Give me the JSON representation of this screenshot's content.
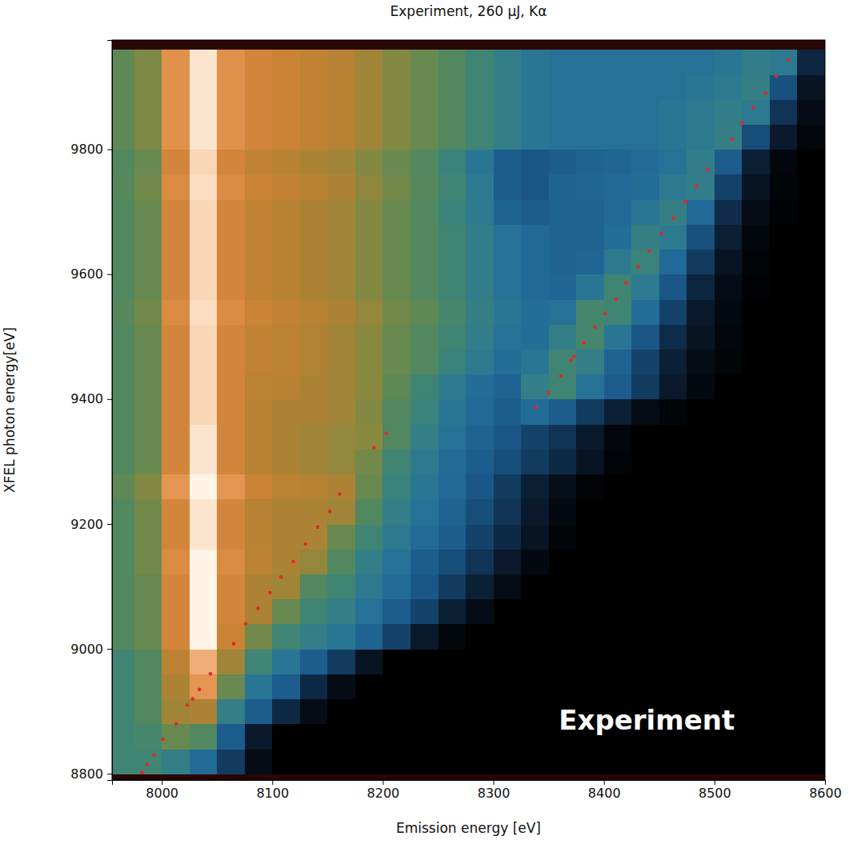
{
  "chart_data": {
    "type": "heatmap",
    "title": "Experiment, 260 μJ, Kα",
    "x_label": "Emission energy [eV]",
    "y_label": "XFEL photon energy[eV]",
    "xlim": [
      7955,
      8600
    ],
    "ylim": [
      8790,
      9975
    ],
    "xticks": [
      8000,
      8100,
      8200,
      8300,
      8400,
      8500,
      8600
    ],
    "yticks": [
      8800,
      9000,
      9200,
      9400,
      9600,
      9800
    ],
    "zlim": [
      0,
      1
    ],
    "x_bins": [
      7955,
      7975,
      8000,
      8025,
      8050,
      8075,
      8100,
      8125,
      8150,
      8175,
      8200,
      8225,
      8250,
      8275,
      8300,
      8325,
      8350,
      8375,
      8400,
      8425,
      8450,
      8475,
      8500,
      8525,
      8550,
      8575,
      8600
    ],
    "y_bins": [
      8800,
      8840,
      8880,
      8920,
      8960,
      9000,
      9040,
      9080,
      9120,
      9160,
      9200,
      9240,
      9280,
      9320,
      9360,
      9400,
      9440,
      9480,
      9520,
      9560,
      9600,
      9640,
      9680,
      9720,
      9760,
      9800,
      9840,
      9880,
      9920,
      9960
    ],
    "cells": [
      [
        0.5,
        0.5,
        0.45,
        0.35,
        0.2,
        0.05,
        0,
        0,
        0,
        0,
        0,
        0,
        0,
        0,
        0,
        0,
        0,
        0,
        0,
        0,
        0,
        0,
        0,
        0,
        0,
        0
      ],
      [
        0.5,
        0.52,
        0.6,
        0.55,
        0.3,
        0.1,
        0,
        0,
        0,
        0,
        0,
        0,
        0,
        0,
        0,
        0,
        0,
        0,
        0,
        0,
        0,
        0,
        0,
        0,
        0,
        0
      ],
      [
        0.5,
        0.55,
        0.7,
        0.72,
        0.45,
        0.3,
        0.15,
        0.05,
        0,
        0,
        0,
        0,
        0,
        0,
        0,
        0,
        0,
        0,
        0,
        0,
        0,
        0,
        0,
        0,
        0,
        0
      ],
      [
        0.5,
        0.55,
        0.72,
        0.85,
        0.6,
        0.4,
        0.3,
        0.15,
        0.05,
        0,
        0,
        0,
        0,
        0,
        0,
        0,
        0,
        0,
        0,
        0,
        0,
        0,
        0,
        0,
        0,
        0
      ],
      [
        0.5,
        0.55,
        0.75,
        0.9,
        0.7,
        0.5,
        0.4,
        0.3,
        0.2,
        0.08,
        0,
        0,
        0,
        0,
        0,
        0,
        0,
        0,
        0,
        0,
        0,
        0,
        0,
        0,
        0,
        0
      ],
      [
        0.55,
        0.6,
        0.8,
        1,
        0.78,
        0.62,
        0.5,
        0.45,
        0.4,
        0.32,
        0.22,
        0.1,
        0.03,
        0,
        0,
        0,
        0,
        0,
        0,
        0,
        0,
        0,
        0,
        0,
        0,
        0
      ],
      [
        0.55,
        0.6,
        0.8,
        1,
        0.8,
        0.72,
        0.6,
        0.5,
        0.45,
        0.38,
        0.3,
        0.22,
        0.12,
        0.05,
        0,
        0,
        0,
        0,
        0,
        0,
        0,
        0,
        0,
        0,
        0,
        0
      ],
      [
        0.55,
        0.6,
        0.8,
        1,
        0.8,
        0.72,
        0.7,
        0.55,
        0.5,
        0.42,
        0.35,
        0.28,
        0.2,
        0.12,
        0.05,
        0,
        0,
        0,
        0,
        0,
        0,
        0,
        0,
        0,
        0,
        0
      ],
      [
        0.55,
        0.62,
        0.82,
        1,
        0.82,
        0.75,
        0.72,
        0.68,
        0.55,
        0.45,
        0.38,
        0.3,
        0.25,
        0.18,
        0.1,
        0.04,
        0,
        0,
        0,
        0,
        0,
        0,
        0,
        0,
        0,
        0
      ],
      [
        0.55,
        0.62,
        0.8,
        0.98,
        0.8,
        0.74,
        0.72,
        0.72,
        0.6,
        0.5,
        0.42,
        0.35,
        0.3,
        0.22,
        0.15,
        0.08,
        0.02,
        0,
        0,
        0,
        0,
        0,
        0,
        0,
        0,
        0
      ],
      [
        0.55,
        0.62,
        0.8,
        0.98,
        0.8,
        0.74,
        0.72,
        0.72,
        0.7,
        0.55,
        0.45,
        0.38,
        0.32,
        0.25,
        0.18,
        0.1,
        0.04,
        0,
        0,
        0,
        0,
        0,
        0,
        0,
        0,
        0
      ],
      [
        0.58,
        0.65,
        0.85,
        1,
        0.85,
        0.78,
        0.75,
        0.74,
        0.72,
        0.6,
        0.48,
        0.4,
        0.34,
        0.28,
        0.2,
        0.12,
        0.06,
        0.02,
        0,
        0,
        0,
        0,
        0,
        0,
        0,
        0
      ],
      [
        0.55,
        0.6,
        0.8,
        0.98,
        0.8,
        0.74,
        0.72,
        0.7,
        0.68,
        0.62,
        0.5,
        0.42,
        0.35,
        0.3,
        0.25,
        0.2,
        0.15,
        0.08,
        0.02,
        0,
        0,
        0,
        0,
        0,
        0,
        0
      ],
      [
        0.55,
        0.6,
        0.8,
        0.98,
        0.8,
        0.74,
        0.72,
        0.7,
        0.68,
        0.66,
        0.55,
        0.45,
        0.38,
        0.32,
        0.28,
        0.22,
        0.18,
        0.1,
        0.03,
        0,
        0,
        0,
        0,
        0,
        0,
        0
      ],
      [
        0.55,
        0.6,
        0.8,
        0.96,
        0.8,
        0.74,
        0.72,
        0.72,
        0.7,
        0.65,
        0.55,
        0.48,
        0.4,
        0.34,
        0.3,
        0.35,
        0.3,
        0.2,
        0.12,
        0.05,
        0.02,
        0,
        0,
        0,
        0,
        0
      ],
      [
        0.55,
        0.6,
        0.8,
        0.96,
        0.8,
        0.75,
        0.74,
        0.72,
        0.7,
        0.66,
        0.58,
        0.5,
        0.42,
        0.36,
        0.32,
        0.45,
        0.5,
        0.38,
        0.3,
        0.2,
        0.1,
        0.04,
        0,
        0,
        0,
        0
      ],
      [
        0.55,
        0.6,
        0.8,
        0.96,
        0.8,
        0.76,
        0.75,
        0.73,
        0.7,
        0.66,
        0.6,
        0.55,
        0.48,
        0.42,
        0.36,
        0.4,
        0.5,
        0.45,
        0.32,
        0.22,
        0.12,
        0.05,
        0.02,
        0,
        0,
        0
      ],
      [
        0.55,
        0.6,
        0.8,
        0.96,
        0.8,
        0.76,
        0.75,
        0.73,
        0.7,
        0.66,
        0.6,
        0.55,
        0.5,
        0.44,
        0.38,
        0.36,
        0.45,
        0.52,
        0.4,
        0.28,
        0.16,
        0.08,
        0.03,
        0,
        0,
        0
      ],
      [
        0.56,
        0.62,
        0.82,
        0.97,
        0.82,
        0.78,
        0.76,
        0.74,
        0.72,
        0.68,
        0.62,
        0.58,
        0.52,
        0.46,
        0.4,
        0.36,
        0.38,
        0.52,
        0.5,
        0.36,
        0.22,
        0.1,
        0.04,
        0,
        0,
        0
      ],
      [
        0.55,
        0.6,
        0.8,
        0.96,
        0.8,
        0.76,
        0.74,
        0.72,
        0.7,
        0.65,
        0.6,
        0.55,
        0.5,
        0.44,
        0.38,
        0.34,
        0.33,
        0.4,
        0.5,
        0.42,
        0.28,
        0.14,
        0.05,
        0.01,
        0,
        0
      ],
      [
        0.55,
        0.6,
        0.8,
        0.96,
        0.8,
        0.76,
        0.74,
        0.72,
        0.7,
        0.65,
        0.6,
        0.55,
        0.5,
        0.44,
        0.38,
        0.34,
        0.32,
        0.33,
        0.42,
        0.48,
        0.34,
        0.2,
        0.08,
        0.02,
        0,
        0
      ],
      [
        0.55,
        0.6,
        0.8,
        0.96,
        0.8,
        0.76,
        0.74,
        0.72,
        0.7,
        0.65,
        0.6,
        0.55,
        0.5,
        0.44,
        0.38,
        0.34,
        0.32,
        0.32,
        0.36,
        0.46,
        0.42,
        0.26,
        0.12,
        0.03,
        0,
        0
      ],
      [
        0.55,
        0.6,
        0.8,
        0.96,
        0.8,
        0.76,
        0.74,
        0.72,
        0.7,
        0.65,
        0.6,
        0.55,
        0.48,
        0.42,
        0.32,
        0.3,
        0.32,
        0.32,
        0.34,
        0.4,
        0.46,
        0.34,
        0.16,
        0.05,
        0.01,
        0
      ],
      [
        0.56,
        0.62,
        0.82,
        0.97,
        0.82,
        0.78,
        0.76,
        0.74,
        0.72,
        0.67,
        0.62,
        0.56,
        0.5,
        0.42,
        0.3,
        0.28,
        0.32,
        0.33,
        0.34,
        0.36,
        0.42,
        0.44,
        0.22,
        0.08,
        0.02,
        0
      ],
      [
        0.55,
        0.6,
        0.8,
        0.96,
        0.8,
        0.76,
        0.74,
        0.72,
        0.7,
        0.65,
        0.6,
        0.55,
        0.48,
        0.4,
        0.3,
        0.28,
        0.3,
        0.32,
        0.33,
        0.35,
        0.38,
        0.44,
        0.3,
        0.12,
        0.03,
        0
      ],
      [
        0.58,
        0.64,
        0.84,
        0.98,
        0.84,
        0.8,
        0.78,
        0.76,
        0.74,
        0.7,
        0.65,
        0.6,
        0.55,
        0.5,
        0.45,
        0.4,
        0.38,
        0.38,
        0.38,
        0.38,
        0.4,
        0.42,
        0.46,
        0.25,
        0.1,
        0.03
      ],
      [
        0.58,
        0.64,
        0.84,
        0.98,
        0.84,
        0.8,
        0.78,
        0.76,
        0.74,
        0.7,
        0.65,
        0.6,
        0.55,
        0.5,
        0.45,
        0.4,
        0.38,
        0.38,
        0.38,
        0.38,
        0.4,
        0.42,
        0.44,
        0.42,
        0.18,
        0.05
      ],
      [
        0.58,
        0.64,
        0.84,
        0.98,
        0.84,
        0.8,
        0.78,
        0.76,
        0.74,
        0.7,
        0.65,
        0.6,
        0.55,
        0.5,
        0.45,
        0.4,
        0.38,
        0.38,
        0.38,
        0.38,
        0.38,
        0.4,
        0.42,
        0.46,
        0.26,
        0.08
      ],
      [
        0.58,
        0.64,
        0.84,
        0.98,
        0.84,
        0.8,
        0.78,
        0.76,
        0.74,
        0.7,
        0.65,
        0.6,
        0.55,
        0.5,
        0.45,
        0.4,
        0.38,
        0.38,
        0.38,
        0.38,
        0.38,
        0.38,
        0.4,
        0.44,
        0.42,
        0.14
      ]
    ],
    "annotations": [
      {
        "text": "Experiment"
      }
    ],
    "series": [
      {
        "type": "scatter",
        "color": "#e0282a",
        "marker": "circle",
        "x": [
          7982,
          7987,
          7993,
          8001,
          8013,
          8023,
          8028,
          8034,
          8044,
          8065,
          8076,
          8087,
          8098,
          8108,
          8119,
          8130,
          8141,
          8152,
          8161,
          8192,
          8203,
          8339,
          8350,
          8361,
          8370,
          8373,
          8382,
          8392,
          8401,
          8411,
          8420,
          8431,
          8441,
          8452,
          8463,
          8474,
          8484,
          8494,
          8516,
          8525,
          8535,
          8546,
          8556,
          8567
        ],
        "y": [
          8802,
          8815,
          8830,
          8855,
          8880,
          8910,
          8920,
          8935,
          8960,
          9008,
          9040,
          9065,
          9090,
          9115,
          9140,
          9168,
          9195,
          9220,
          9248,
          9322,
          9345,
          9387,
          9410,
          9437,
          9462,
          9468,
          9490,
          9515,
          9537,
          9560,
          9586,
          9612,
          9637,
          9665,
          9690,
          9716,
          9741,
          9767,
          9816,
          9842,
          9867,
          9890,
          9917,
          9943
        ]
      }
    ]
  }
}
